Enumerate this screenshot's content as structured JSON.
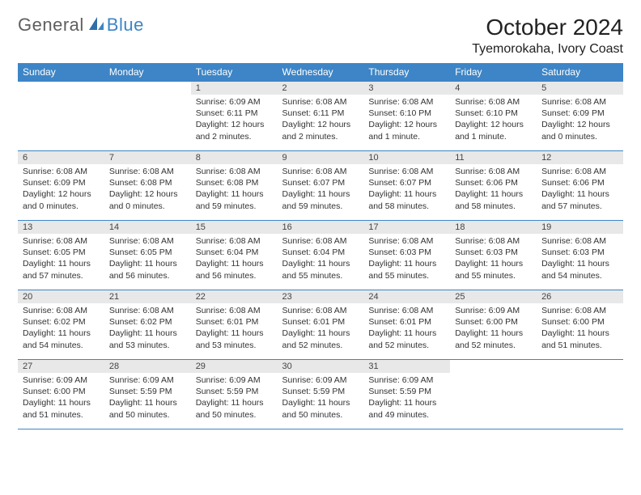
{
  "brand": {
    "text1": "General",
    "text2": "Blue"
  },
  "title": "October 2024",
  "location": "Tyemorokaha, Ivory Coast",
  "colors": {
    "header_bg": "#3d85c6",
    "header_fg": "#ffffff",
    "daynum_bg": "#e8e8e8",
    "daynum_fg": "#444444",
    "text": "#333333",
    "title_fg": "#222222",
    "logo_gray": "#5f5f5f",
    "logo_blue": "#3d85c6",
    "line": "#3d85c6",
    "page_bg": "#ffffff"
  },
  "week_headers": [
    "Sunday",
    "Monday",
    "Tuesday",
    "Wednesday",
    "Thursday",
    "Friday",
    "Saturday"
  ],
  "weeks": [
    [
      {
        "n": "",
        "sr": "",
        "ss": "",
        "dl": ""
      },
      {
        "n": "",
        "sr": "",
        "ss": "",
        "dl": ""
      },
      {
        "n": "1",
        "sr": "Sunrise: 6:09 AM",
        "ss": "Sunset: 6:11 PM",
        "dl": "Daylight: 12 hours and 2 minutes."
      },
      {
        "n": "2",
        "sr": "Sunrise: 6:08 AM",
        "ss": "Sunset: 6:11 PM",
        "dl": "Daylight: 12 hours and 2 minutes."
      },
      {
        "n": "3",
        "sr": "Sunrise: 6:08 AM",
        "ss": "Sunset: 6:10 PM",
        "dl": "Daylight: 12 hours and 1 minute."
      },
      {
        "n": "4",
        "sr": "Sunrise: 6:08 AM",
        "ss": "Sunset: 6:10 PM",
        "dl": "Daylight: 12 hours and 1 minute."
      },
      {
        "n": "5",
        "sr": "Sunrise: 6:08 AM",
        "ss": "Sunset: 6:09 PM",
        "dl": "Daylight: 12 hours and 0 minutes."
      }
    ],
    [
      {
        "n": "6",
        "sr": "Sunrise: 6:08 AM",
        "ss": "Sunset: 6:09 PM",
        "dl": "Daylight: 12 hours and 0 minutes."
      },
      {
        "n": "7",
        "sr": "Sunrise: 6:08 AM",
        "ss": "Sunset: 6:08 PM",
        "dl": "Daylight: 12 hours and 0 minutes."
      },
      {
        "n": "8",
        "sr": "Sunrise: 6:08 AM",
        "ss": "Sunset: 6:08 PM",
        "dl": "Daylight: 11 hours and 59 minutes."
      },
      {
        "n": "9",
        "sr": "Sunrise: 6:08 AM",
        "ss": "Sunset: 6:07 PM",
        "dl": "Daylight: 11 hours and 59 minutes."
      },
      {
        "n": "10",
        "sr": "Sunrise: 6:08 AM",
        "ss": "Sunset: 6:07 PM",
        "dl": "Daylight: 11 hours and 58 minutes."
      },
      {
        "n": "11",
        "sr": "Sunrise: 6:08 AM",
        "ss": "Sunset: 6:06 PM",
        "dl": "Daylight: 11 hours and 58 minutes."
      },
      {
        "n": "12",
        "sr": "Sunrise: 6:08 AM",
        "ss": "Sunset: 6:06 PM",
        "dl": "Daylight: 11 hours and 57 minutes."
      }
    ],
    [
      {
        "n": "13",
        "sr": "Sunrise: 6:08 AM",
        "ss": "Sunset: 6:05 PM",
        "dl": "Daylight: 11 hours and 57 minutes."
      },
      {
        "n": "14",
        "sr": "Sunrise: 6:08 AM",
        "ss": "Sunset: 6:05 PM",
        "dl": "Daylight: 11 hours and 56 minutes."
      },
      {
        "n": "15",
        "sr": "Sunrise: 6:08 AM",
        "ss": "Sunset: 6:04 PM",
        "dl": "Daylight: 11 hours and 56 minutes."
      },
      {
        "n": "16",
        "sr": "Sunrise: 6:08 AM",
        "ss": "Sunset: 6:04 PM",
        "dl": "Daylight: 11 hours and 55 minutes."
      },
      {
        "n": "17",
        "sr": "Sunrise: 6:08 AM",
        "ss": "Sunset: 6:03 PM",
        "dl": "Daylight: 11 hours and 55 minutes."
      },
      {
        "n": "18",
        "sr": "Sunrise: 6:08 AM",
        "ss": "Sunset: 6:03 PM",
        "dl": "Daylight: 11 hours and 55 minutes."
      },
      {
        "n": "19",
        "sr": "Sunrise: 6:08 AM",
        "ss": "Sunset: 6:03 PM",
        "dl": "Daylight: 11 hours and 54 minutes."
      }
    ],
    [
      {
        "n": "20",
        "sr": "Sunrise: 6:08 AM",
        "ss": "Sunset: 6:02 PM",
        "dl": "Daylight: 11 hours and 54 minutes."
      },
      {
        "n": "21",
        "sr": "Sunrise: 6:08 AM",
        "ss": "Sunset: 6:02 PM",
        "dl": "Daylight: 11 hours and 53 minutes."
      },
      {
        "n": "22",
        "sr": "Sunrise: 6:08 AM",
        "ss": "Sunset: 6:01 PM",
        "dl": "Daylight: 11 hours and 53 minutes."
      },
      {
        "n": "23",
        "sr": "Sunrise: 6:08 AM",
        "ss": "Sunset: 6:01 PM",
        "dl": "Daylight: 11 hours and 52 minutes."
      },
      {
        "n": "24",
        "sr": "Sunrise: 6:08 AM",
        "ss": "Sunset: 6:01 PM",
        "dl": "Daylight: 11 hours and 52 minutes."
      },
      {
        "n": "25",
        "sr": "Sunrise: 6:09 AM",
        "ss": "Sunset: 6:00 PM",
        "dl": "Daylight: 11 hours and 52 minutes."
      },
      {
        "n": "26",
        "sr": "Sunrise: 6:08 AM",
        "ss": "Sunset: 6:00 PM",
        "dl": "Daylight: 11 hours and 51 minutes."
      }
    ],
    [
      {
        "n": "27",
        "sr": "Sunrise: 6:09 AM",
        "ss": "Sunset: 6:00 PM",
        "dl": "Daylight: 11 hours and 51 minutes."
      },
      {
        "n": "28",
        "sr": "Sunrise: 6:09 AM",
        "ss": "Sunset: 5:59 PM",
        "dl": "Daylight: 11 hours and 50 minutes."
      },
      {
        "n": "29",
        "sr": "Sunrise: 6:09 AM",
        "ss": "Sunset: 5:59 PM",
        "dl": "Daylight: 11 hours and 50 minutes."
      },
      {
        "n": "30",
        "sr": "Sunrise: 6:09 AM",
        "ss": "Sunset: 5:59 PM",
        "dl": "Daylight: 11 hours and 50 minutes."
      },
      {
        "n": "31",
        "sr": "Sunrise: 6:09 AM",
        "ss": "Sunset: 5:59 PM",
        "dl": "Daylight: 11 hours and 49 minutes."
      },
      {
        "n": "",
        "sr": "",
        "ss": "",
        "dl": ""
      },
      {
        "n": "",
        "sr": "",
        "ss": "",
        "dl": ""
      }
    ]
  ]
}
